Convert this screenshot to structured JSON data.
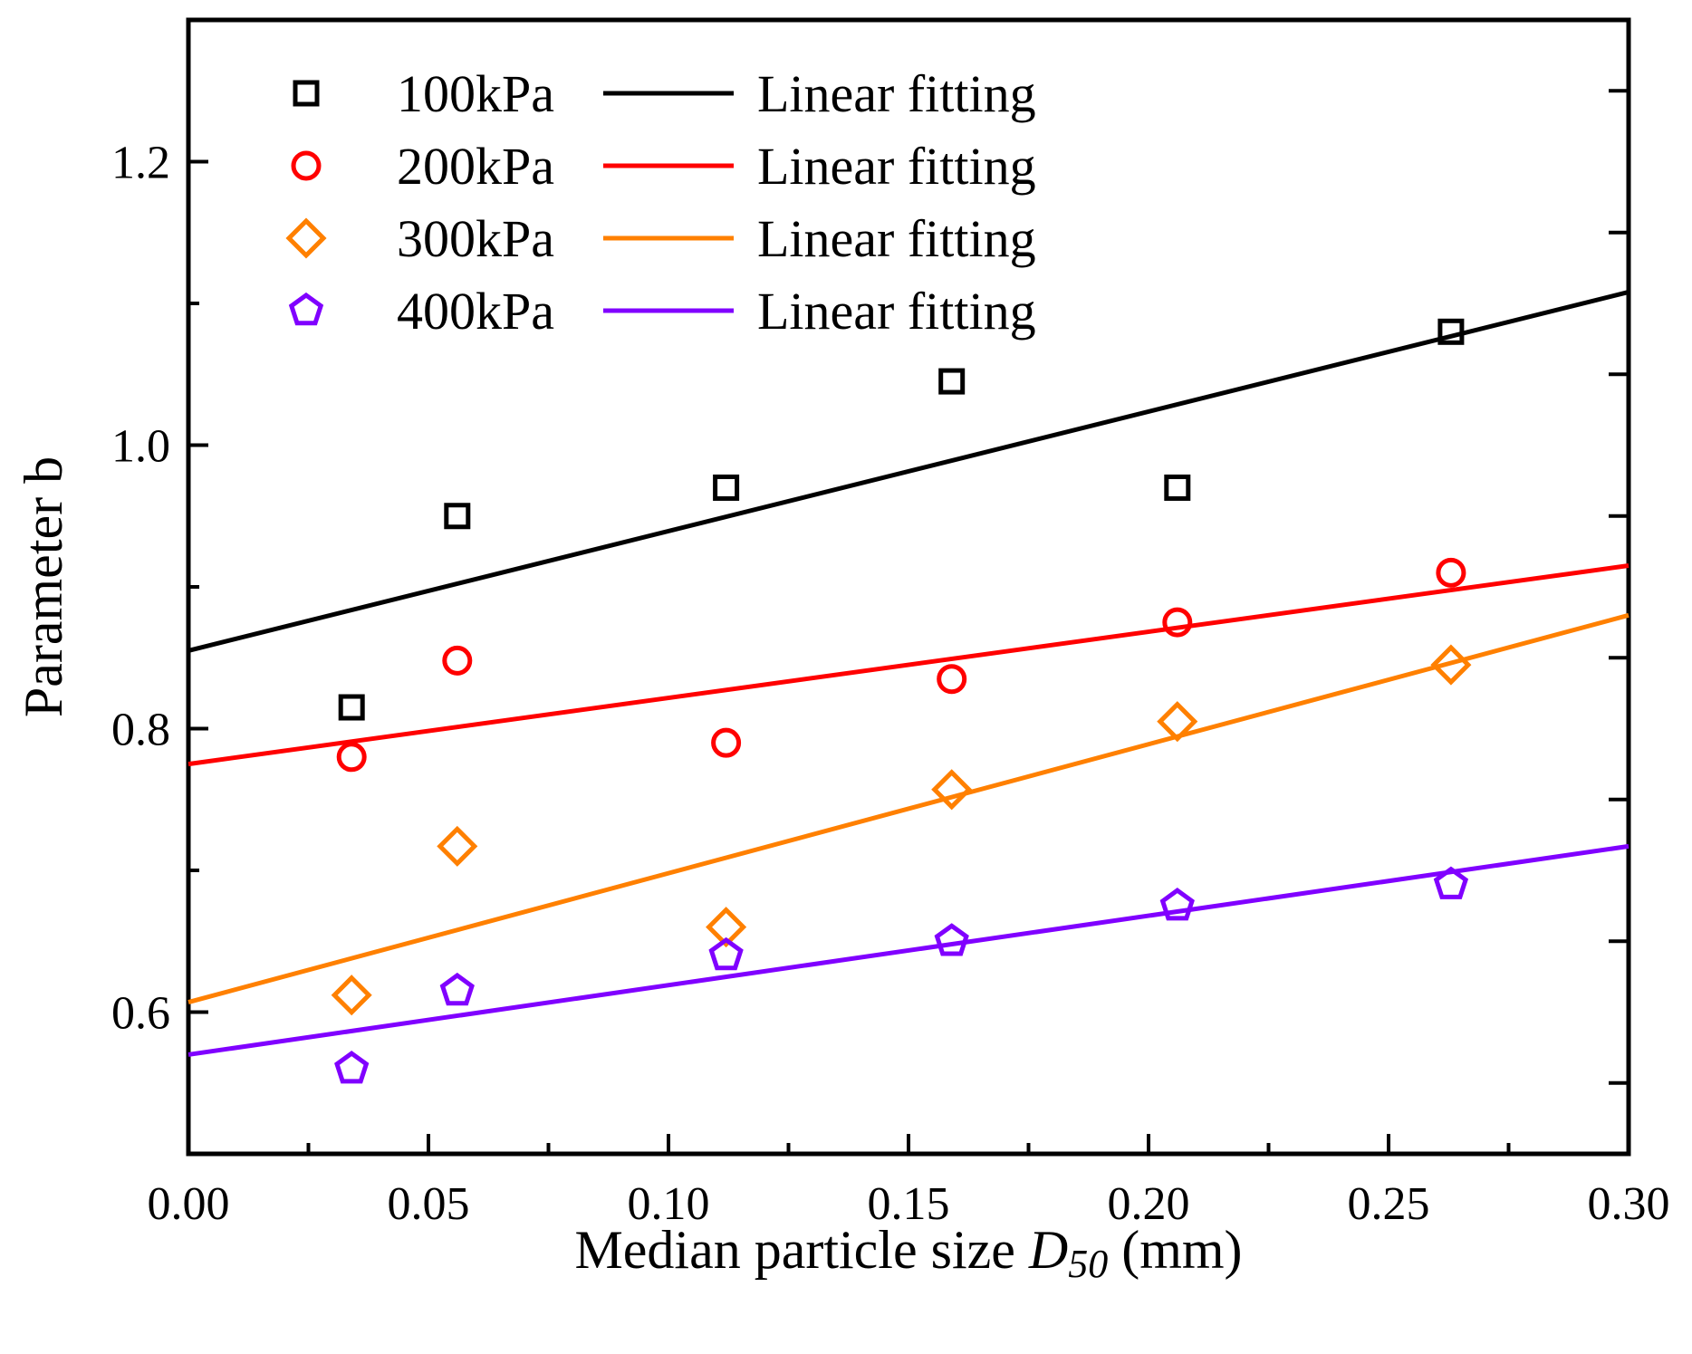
{
  "chart_data": {
    "type": "scatter",
    "title": "",
    "xlabel": {
      "prefix": "Median particle size ",
      "var": "D",
      "sub": "50",
      "suffix": " (mm)"
    },
    "ylabel": "Parameter b",
    "xlim": [
      0.0,
      0.3
    ],
    "ylim": [
      0.5,
      1.3
    ],
    "x_ticks": [
      0.0,
      0.05,
      0.1,
      0.15,
      0.2,
      0.25,
      0.3
    ],
    "x_tick_labels": [
      "0.00",
      "0.05",
      "0.10",
      "0.15",
      "0.20",
      "0.25",
      "0.30"
    ],
    "y_ticks": [
      0.6,
      0.8,
      1.0,
      1.2
    ],
    "y_tick_labels": [
      "0.6",
      "0.8",
      "1.0",
      "1.2"
    ],
    "grid": false,
    "legend_position": "top-left",
    "x": [
      0.034,
      0.056,
      0.112,
      0.159,
      0.206,
      0.263
    ],
    "series": [
      {
        "name": "100kPa",
        "marker": "square",
        "color": "#000000",
        "values": [
          0.815,
          0.95,
          0.97,
          1.045,
          0.97,
          1.08
        ],
        "fit_label": "Linear fitting",
        "fit": [
          [
            0.0,
            0.855
          ],
          [
            0.3,
            1.108
          ]
        ]
      },
      {
        "name": "200kPa",
        "marker": "circle",
        "color": "#ff0000",
        "values": [
          0.78,
          0.848,
          0.79,
          0.835,
          0.875,
          0.91
        ],
        "fit_label": "Linear fitting",
        "fit": [
          [
            0.0,
            0.775
          ],
          [
            0.3,
            0.915
          ]
        ]
      },
      {
        "name": "300kPa",
        "marker": "diamond",
        "color": "#ff8000",
        "values": [
          0.612,
          0.717,
          0.66,
          0.757,
          0.805,
          0.845
        ],
        "fit_label": "Linear fitting",
        "fit": [
          [
            0.0,
            0.607
          ],
          [
            0.3,
            0.88
          ]
        ]
      },
      {
        "name": "400kPa",
        "marker": "pentagon",
        "color": "#8000ff",
        "values": [
          0.56,
          0.615,
          0.64,
          0.65,
          0.675,
          0.69
        ],
        "fit_label": "Linear fitting",
        "fit": [
          [
            0.0,
            0.57
          ],
          [
            0.3,
            0.717
          ]
        ]
      }
    ]
  }
}
